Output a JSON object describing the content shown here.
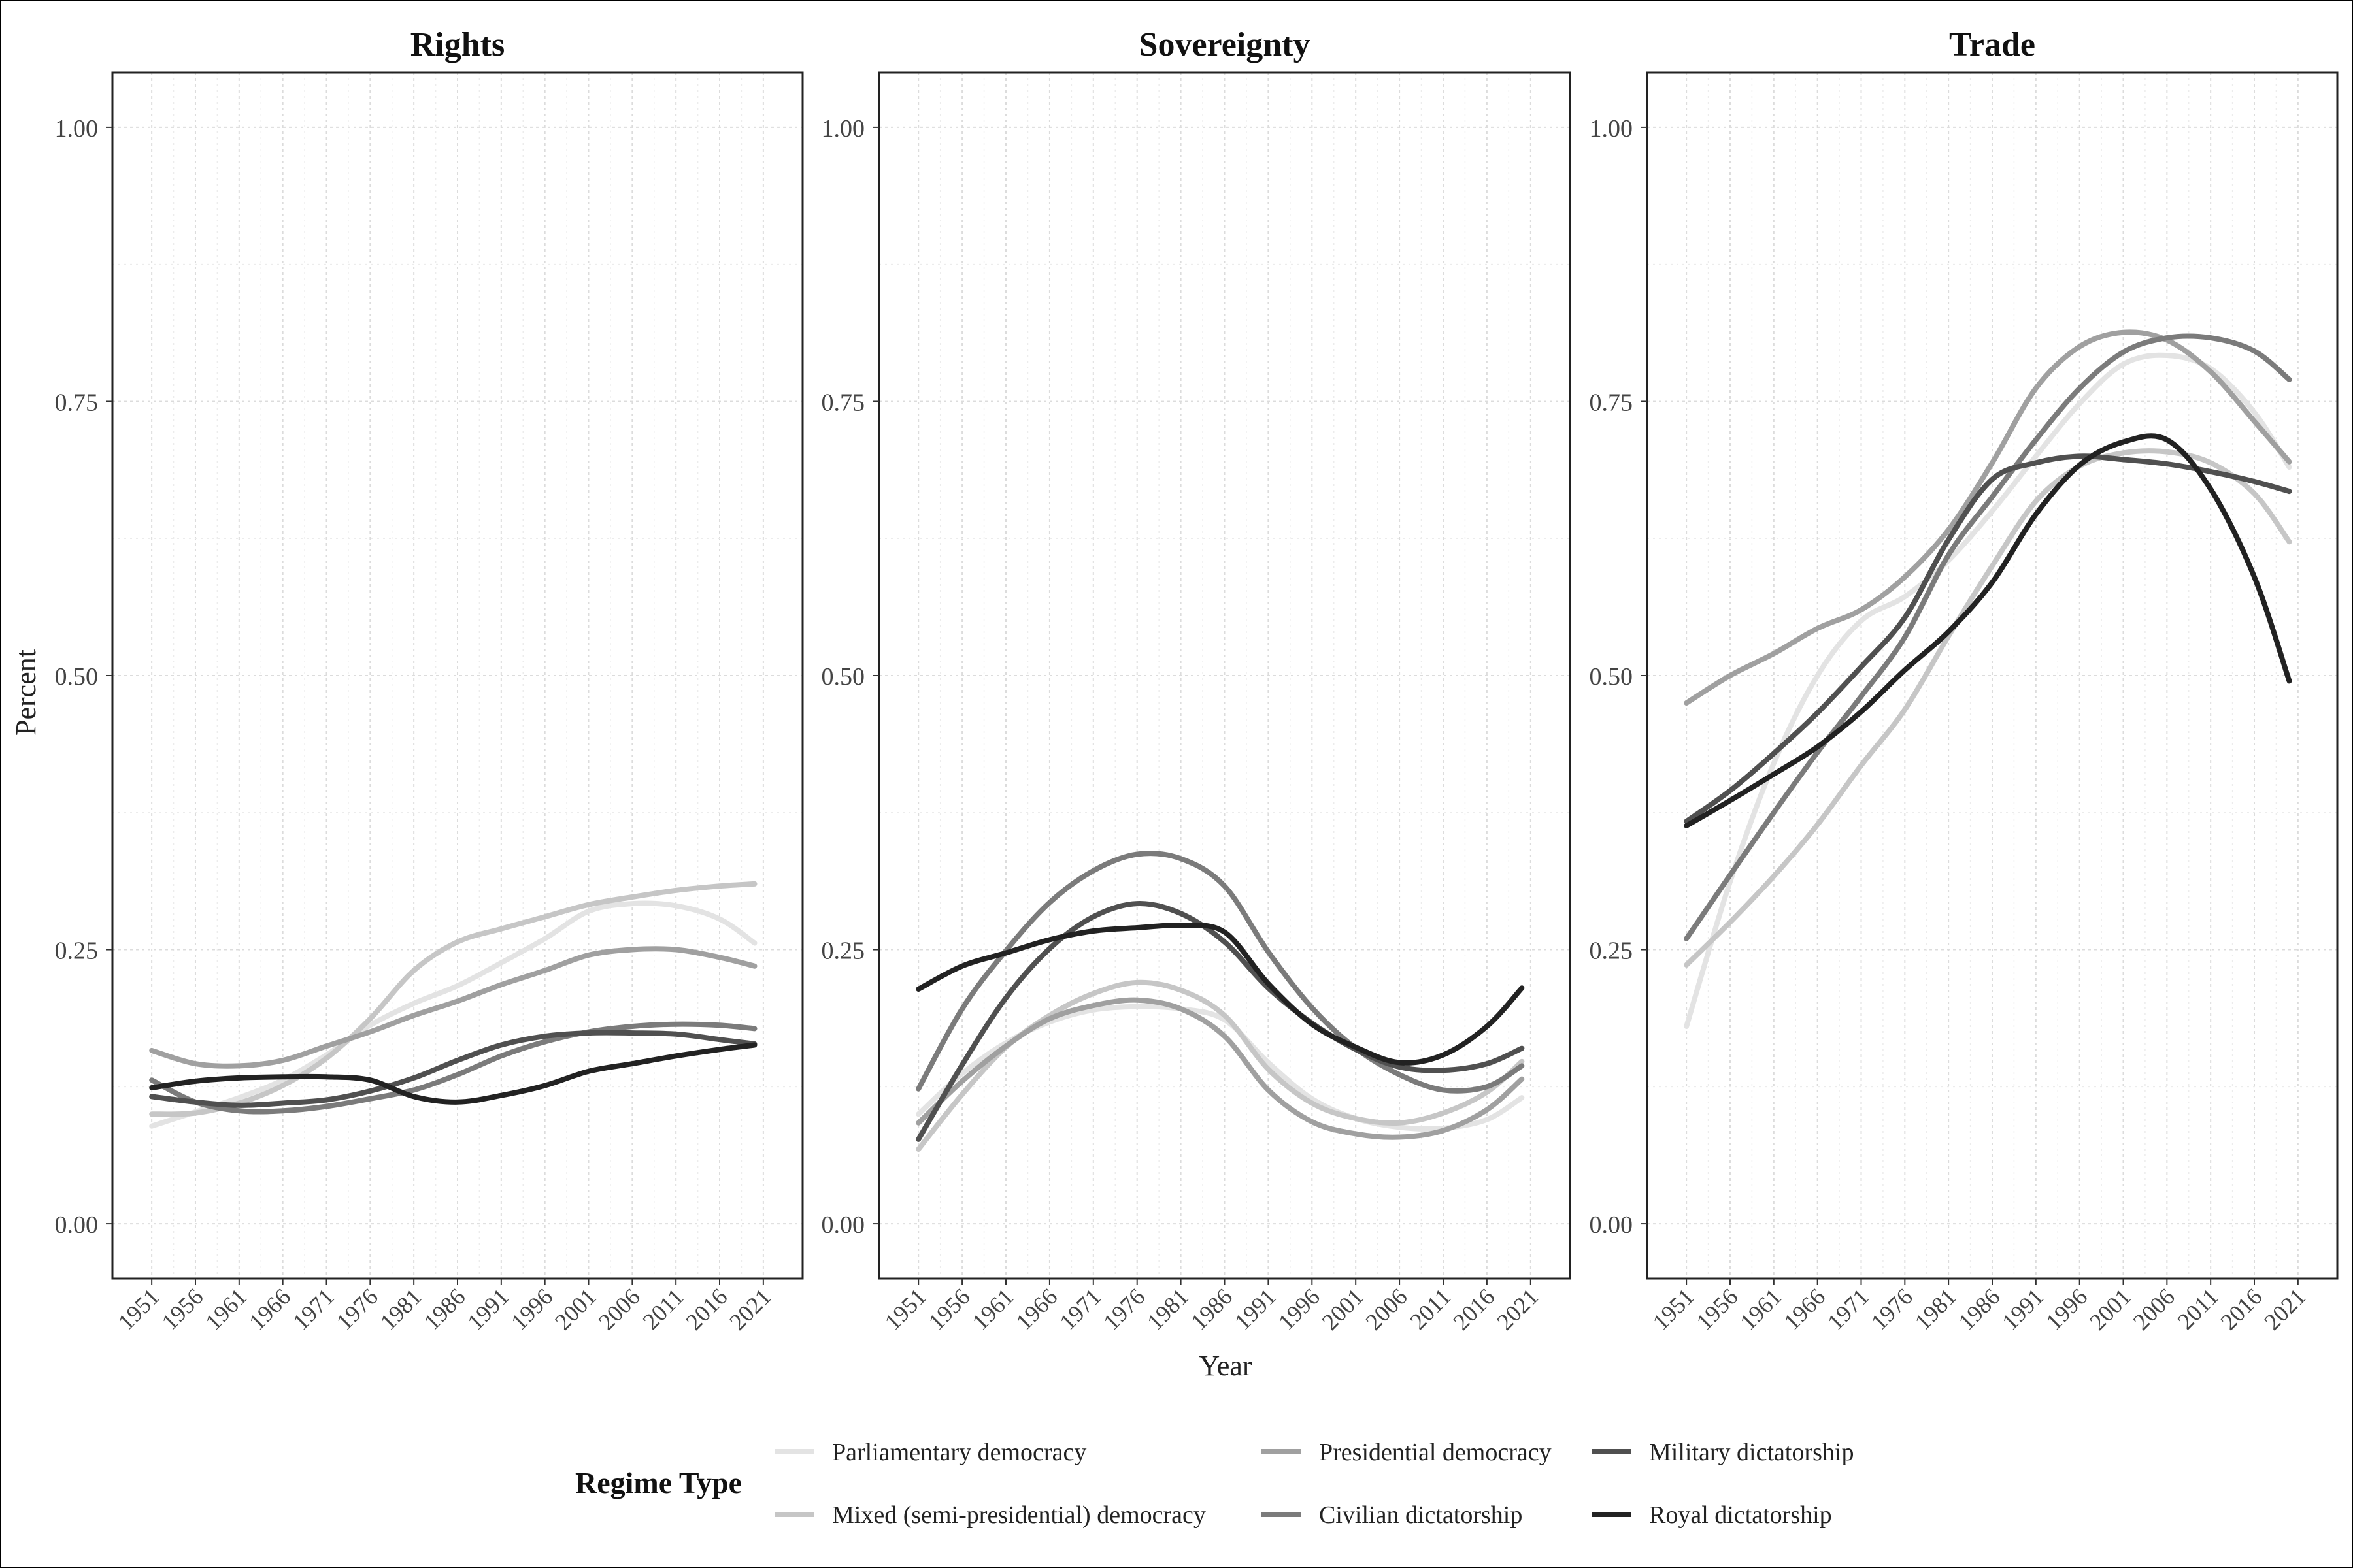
{
  "figure": {
    "xlabel": "Year",
    "ylabel": "Percent",
    "legend_title": "Regime Type"
  },
  "colors": {
    "Parliamentary democracy": "#e3e3e3",
    "Mixed (semi-presidential) democracy": "#c6c6c6",
    "Presidential democracy": "#a0a0a0",
    "Civilian dictatorship": "#7b7b7b",
    "Military dictatorship": "#505050",
    "Royal dictatorship": "#222222"
  },
  "legend": {
    "entries": [
      "Parliamentary democracy",
      "Mixed (semi-presidential) democracy",
      "Presidential democracy",
      "Civilian dictatorship",
      "Military dictatorship",
      "Royal dictatorship"
    ]
  },
  "chart_data": [
    {
      "type": "line",
      "title": "Rights",
      "xlim": [
        1946.5,
        2025.5
      ],
      "ylim": [
        -0.05,
        1.05
      ],
      "xticks": [
        "1951",
        "1956",
        "1961",
        "1966",
        "1971",
        "1976",
        "1981",
        "1986",
        "1991",
        "1996",
        "2001",
        "2006",
        "2011",
        "2016",
        "2021"
      ],
      "yticks": [
        "0.00",
        "0.25",
        "0.50",
        "0.75",
        "1.00"
      ],
      "x": [
        1951,
        1956,
        1961,
        1966,
        1971,
        1976,
        1981,
        1986,
        1991,
        1996,
        2001,
        2006,
        2011,
        2016,
        2020
      ],
      "series": [
        {
          "name": "Parliamentary democracy",
          "values": [
            0.089,
            0.102,
            0.115,
            0.131,
            0.154,
            0.181,
            0.201,
            0.217,
            0.238,
            0.26,
            0.285,
            0.292,
            0.29,
            0.278,
            0.256
          ]
        },
        {
          "name": "Mixed (semi-presidential) democracy",
          "values": [
            0.1,
            0.101,
            0.11,
            0.126,
            0.151,
            0.187,
            0.231,
            0.257,
            0.269,
            0.28,
            0.291,
            0.298,
            0.304,
            0.308,
            0.31
          ]
        },
        {
          "name": "Presidential democracy",
          "values": [
            0.158,
            0.146,
            0.144,
            0.149,
            0.162,
            0.175,
            0.19,
            0.203,
            0.218,
            0.231,
            0.245,
            0.25,
            0.25,
            0.243,
            0.235
          ]
        },
        {
          "name": "Civilian dictatorship",
          "values": [
            0.131,
            0.111,
            0.103,
            0.103,
            0.107,
            0.114,
            0.122,
            0.136,
            0.153,
            0.166,
            0.175,
            0.18,
            0.182,
            0.181,
            0.178
          ]
        },
        {
          "name": "Military dictatorship",
          "values": [
            0.116,
            0.111,
            0.108,
            0.11,
            0.113,
            0.121,
            0.133,
            0.149,
            0.163,
            0.171,
            0.174,
            0.174,
            0.173,
            0.168,
            0.164
          ]
        },
        {
          "name": "Royal dictatorship",
          "values": [
            0.124,
            0.13,
            0.133,
            0.134,
            0.134,
            0.131,
            0.116,
            0.111,
            0.117,
            0.126,
            0.139,
            0.146,
            0.153,
            0.159,
            0.163
          ]
        }
      ]
    },
    {
      "type": "line",
      "title": "Sovereignty",
      "xlim": [
        1946.5,
        2025.5
      ],
      "ylim": [
        -0.05,
        1.05
      ],
      "xticks": [
        "1951",
        "1956",
        "1961",
        "1966",
        "1971",
        "1976",
        "1981",
        "1986",
        "1991",
        "1996",
        "2001",
        "2006",
        "2011",
        "2016",
        "2021"
      ],
      "yticks": [
        "0.00",
        "0.25",
        "0.50",
        "0.75",
        "1.00"
      ],
      "x": [
        1951,
        1956,
        1961,
        1966,
        1971,
        1976,
        1981,
        1986,
        1991,
        1996,
        2001,
        2006,
        2011,
        2016,
        2020
      ],
      "series": [
        {
          "name": "Parliamentary democracy",
          "values": [
            0.1,
            0.137,
            0.165,
            0.184,
            0.195,
            0.198,
            0.196,
            0.186,
            0.147,
            0.114,
            0.096,
            0.088,
            0.087,
            0.095,
            0.115
          ]
        },
        {
          "name": "Mixed (semi-presidential) democracy",
          "values": [
            0.068,
            0.118,
            0.161,
            0.19,
            0.21,
            0.22,
            0.213,
            0.19,
            0.141,
            0.11,
            0.096,
            0.092,
            0.101,
            0.12,
            0.148
          ]
        },
        {
          "name": "Presidential democracy",
          "values": [
            0.092,
            0.13,
            0.162,
            0.187,
            0.199,
            0.204,
            0.196,
            0.171,
            0.122,
            0.093,
            0.082,
            0.079,
            0.085,
            0.104,
            0.132
          ]
        },
        {
          "name": "Civilian dictatorship",
          "values": [
            0.123,
            0.196,
            0.249,
            0.293,
            0.322,
            0.337,
            0.333,
            0.308,
            0.248,
            0.197,
            0.16,
            0.136,
            0.122,
            0.125,
            0.144
          ]
        },
        {
          "name": "Military dictatorship",
          "values": [
            0.077,
            0.145,
            0.206,
            0.251,
            0.28,
            0.292,
            0.283,
            0.257,
            0.215,
            0.183,
            0.159,
            0.143,
            0.14,
            0.146,
            0.16
          ]
        },
        {
          "name": "Royal dictatorship",
          "values": [
            0.214,
            0.235,
            0.247,
            0.259,
            0.267,
            0.27,
            0.272,
            0.266,
            0.219,
            0.182,
            0.161,
            0.147,
            0.154,
            0.18,
            0.215
          ]
        }
      ]
    },
    {
      "type": "line",
      "title": "Trade",
      "xlim": [
        1946.5,
        2025.5
      ],
      "ylim": [
        -0.05,
        1.05
      ],
      "xticks": [
        "1951",
        "1956",
        "1961",
        "1966",
        "1971",
        "1976",
        "1981",
        "1986",
        "1991",
        "1996",
        "2001",
        "2006",
        "2011",
        "2016",
        "2021"
      ],
      "yticks": [
        "0.00",
        "0.25",
        "0.50",
        "0.75",
        "1.00"
      ],
      "x": [
        1951,
        1956,
        1961,
        1966,
        1971,
        1976,
        1981,
        1986,
        1991,
        1996,
        2001,
        2006,
        2011,
        2016,
        2020
      ],
      "series": [
        {
          "name": "Parliamentary democracy",
          "values": [
            0.18,
            0.312,
            0.42,
            0.5,
            0.55,
            0.572,
            0.605,
            0.65,
            0.7,
            0.748,
            0.784,
            0.792,
            0.78,
            0.74,
            0.69
          ]
        },
        {
          "name": "Mixed (semi-presidential) democracy",
          "values": [
            0.236,
            0.275,
            0.317,
            0.364,
            0.418,
            0.469,
            0.536,
            0.6,
            0.659,
            0.691,
            0.703,
            0.704,
            0.694,
            0.666,
            0.622
          ]
        },
        {
          "name": "Presidential democracy",
          "values": [
            0.475,
            0.5,
            0.52,
            0.543,
            0.56,
            0.59,
            0.633,
            0.694,
            0.762,
            0.8,
            0.813,
            0.806,
            0.777,
            0.732,
            0.695
          ]
        },
        {
          "name": "Civilian dictatorship",
          "values": [
            0.26,
            0.318,
            0.375,
            0.43,
            0.481,
            0.535,
            0.61,
            0.663,
            0.715,
            0.762,
            0.795,
            0.808,
            0.808,
            0.796,
            0.77
          ]
        },
        {
          "name": "Military dictatorship",
          "values": [
            0.367,
            0.395,
            0.429,
            0.466,
            0.508,
            0.553,
            0.624,
            0.679,
            0.694,
            0.7,
            0.697,
            0.693,
            0.686,
            0.677,
            0.668
          ]
        },
        {
          "name": "Royal dictatorship",
          "values": [
            0.363,
            0.386,
            0.41,
            0.435,
            0.467,
            0.505,
            0.54,
            0.585,
            0.647,
            0.692,
            0.713,
            0.715,
            0.67,
            0.59,
            0.495
          ]
        }
      ]
    }
  ]
}
